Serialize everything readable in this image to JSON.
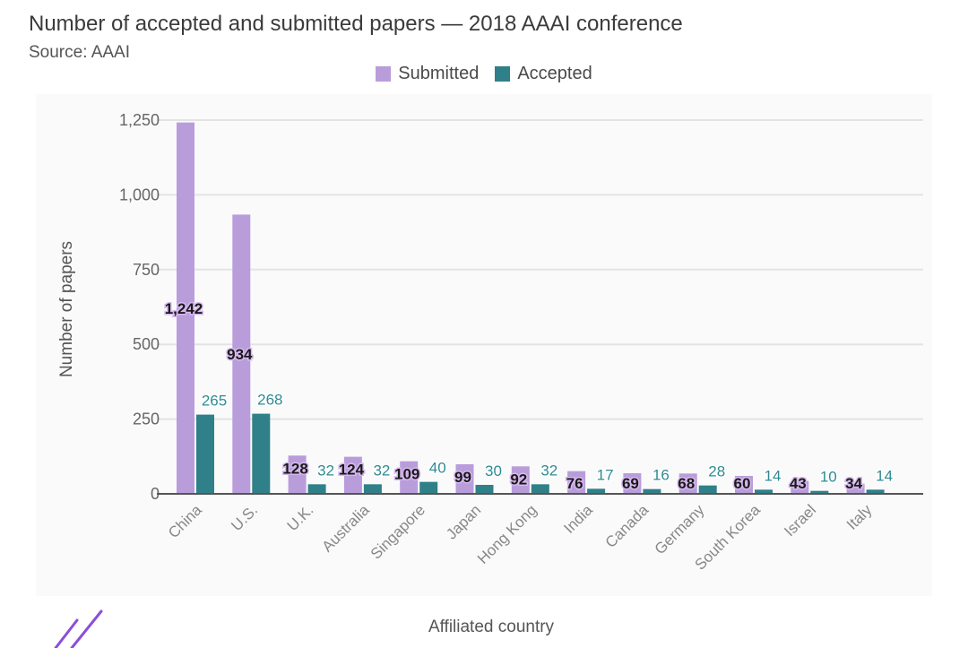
{
  "title": "Number of accepted and submitted papers — 2018 AAAI conference",
  "source": "Source: AAAI",
  "colors": {
    "submitted": "#b99ddb",
    "accepted": "#2f8088",
    "grid": "#e3e3e3",
    "axis": "#555555"
  },
  "chart_data": {
    "type": "bar",
    "categories": [
      "China",
      "U.S.",
      "U.K.",
      "Australia",
      "Singapore",
      "Japan",
      "Hong Kong",
      "India",
      "Canada",
      "Germany",
      "South Korea",
      "Israel",
      "Italy"
    ],
    "series": [
      {
        "name": "Submitted",
        "values": [
          1242,
          934,
          128,
          124,
          109,
          99,
          92,
          76,
          69,
          68,
          60,
          43,
          34
        ]
      },
      {
        "name": "Accepted",
        "values": [
          265,
          268,
          32,
          32,
          40,
          30,
          32,
          17,
          16,
          28,
          14,
          10,
          14
        ]
      }
    ],
    "data_labels": {
      "submitted": [
        "1,242",
        "934",
        "128",
        "124",
        "109",
        "99",
        "92",
        "76",
        "69",
        "68",
        "60",
        "43",
        "34"
      ],
      "accepted": [
        "265",
        "268",
        "32",
        "32",
        "40",
        "30",
        "32",
        "17",
        "16",
        "28",
        "14",
        "10",
        "14"
      ]
    },
    "yticks": [
      0,
      250,
      500,
      750,
      1000,
      1250
    ],
    "ytick_labels": [
      "0",
      "250",
      "500",
      "750",
      "1,000",
      "1,250"
    ],
    "ylim": [
      0,
      1250
    ],
    "xlabel": "Affiliated country",
    "ylabel": "Number of papers",
    "legend_position": "top-center",
    "grid": true
  }
}
